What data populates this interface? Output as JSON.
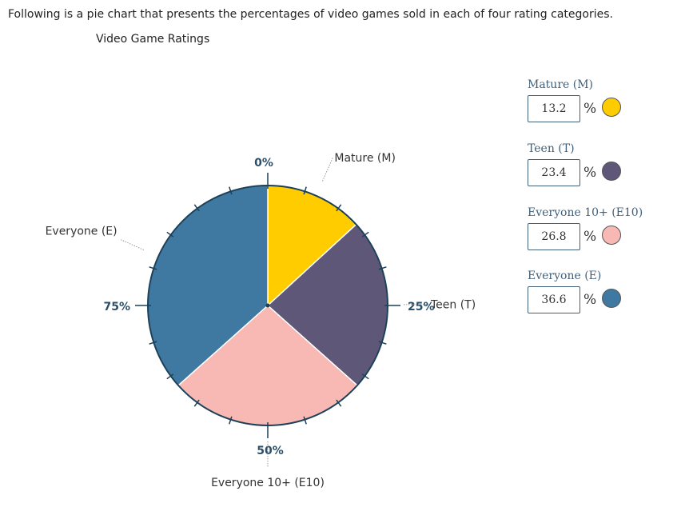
{
  "intro_text": "Following is a pie chart that presents the percentages of video games sold in each of four rating categories.",
  "chart_data": {
    "type": "pie",
    "title": "Video Game Ratings",
    "categories": [
      "Mature (M)",
      "Teen (T)",
      "Everyone 10+ (E10)",
      "Everyone (E)"
    ],
    "values": [
      13.2,
      23.4,
      26.8,
      36.6
    ],
    "unit": "%",
    "colors": [
      "#ffcc00",
      "#5f5777",
      "#f8b8b3",
      "#3f78a0"
    ],
    "tick_labels": [
      "0%",
      "25%",
      "50%",
      "75%"
    ]
  },
  "legend": {
    "percent_symbol": "%",
    "items": [
      {
        "label": "Mature (M)",
        "value": "13.2",
        "color": "#ffcc00"
      },
      {
        "label": "Teen (T)",
        "value": "23.4",
        "color": "#5f5777"
      },
      {
        "label": "Everyone 10+ (E10)",
        "value": "26.8",
        "color": "#f8b8b3"
      },
      {
        "label": "Everyone (E)",
        "value": "36.6",
        "color": "#3f78a0"
      }
    ]
  }
}
